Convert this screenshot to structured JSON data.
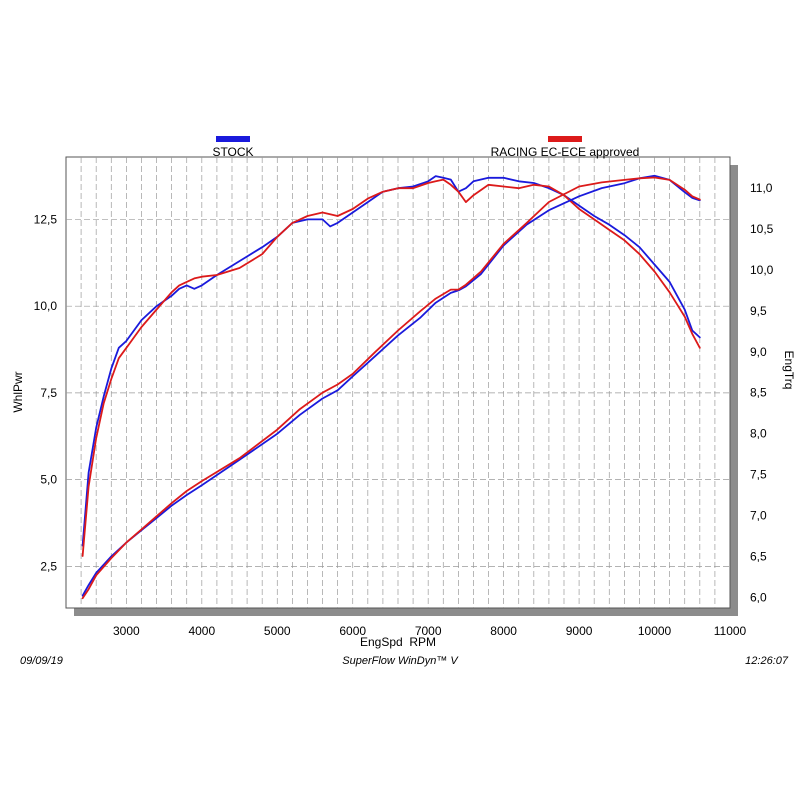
{
  "footer": {
    "date": "09/09/19",
    "software": "SuperFlow WinDyn™ V",
    "time": "12:26:07"
  },
  "chart_data": {
    "type": "line",
    "xlabel": "EngSpd  RPM",
    "ylabel_left": "WhlPwr",
    "ylabel_right": "EngTrq",
    "xlim": [
      2200,
      11000
    ],
    "ylim_left": [
      1.3,
      14.3
    ],
    "ylim_right": [
      5.87,
      11.38
    ],
    "x_ticks": [
      3000,
      4000,
      5000,
      6000,
      7000,
      8000,
      9000,
      10000,
      11000
    ],
    "y_left_ticks": [
      2.5,
      5.0,
      7.5,
      10.0,
      12.5
    ],
    "y_left_tick_labels": [
      "2,5",
      "5,0",
      "7,5",
      "10,0",
      "12,5"
    ],
    "y_right_ticks": [
      6.0,
      6.5,
      7.0,
      7.5,
      8.0,
      8.5,
      9.0,
      9.5,
      10.0,
      10.5,
      11.0
    ],
    "y_right_tick_labels": [
      "6,0",
      "6,5",
      "7,0",
      "7,5",
      "8,0",
      "8,5",
      "9,0",
      "9,5",
      "10,0",
      "10,5",
      "11,0"
    ],
    "grid": true,
    "legend_placement": "top",
    "series": [
      {
        "name": "STOCK",
        "color": "#1a1adc",
        "quantity": "power",
        "axis": "left",
        "x": [
          2420,
          2500,
          2600,
          2700,
          2800,
          2900,
          3000,
          3200,
          3400,
          3600,
          3700,
          3800,
          3900,
          4000,
          4200,
          4500,
          4800,
          5000,
          5200,
          5400,
          5600,
          5700,
          5800,
          6000,
          6200,
          6400,
          6600,
          6800,
          7000,
          7100,
          7200,
          7300,
          7400,
          7500,
          7600,
          7800,
          8000,
          8200,
          8400,
          8600,
          8800,
          9000,
          9200,
          9400,
          9600,
          9800,
          10000,
          10200,
          10400,
          10500,
          10600
        ],
        "y": [
          3.1,
          5.2,
          6.5,
          7.4,
          8.2,
          8.8,
          9.0,
          9.6,
          10.0,
          10.3,
          10.5,
          10.6,
          10.5,
          10.6,
          10.9,
          11.3,
          11.7,
          12.0,
          12.4,
          12.5,
          12.5,
          12.3,
          12.4,
          12.7,
          13.0,
          13.3,
          13.4,
          13.45,
          13.6,
          13.75,
          13.7,
          13.65,
          13.3,
          13.4,
          13.6,
          13.7,
          13.7,
          13.6,
          13.55,
          13.4,
          13.2,
          12.9,
          12.6,
          12.35,
          12.05,
          11.7,
          11.2,
          10.7,
          9.9,
          9.3,
          9.1
        ]
      },
      {
        "name": "RACING EC-ECE approved",
        "color": "#dc1a1a",
        "quantity": "power",
        "axis": "left",
        "x": [
          2420,
          2500,
          2600,
          2700,
          2800,
          2900,
          3000,
          3200,
          3400,
          3600,
          3700,
          3800,
          3900,
          4000,
          4200,
          4500,
          4800,
          5000,
          5200,
          5400,
          5600,
          5700,
          5800,
          6000,
          6200,
          6400,
          6600,
          6800,
          7000,
          7100,
          7200,
          7300,
          7400,
          7500,
          7600,
          7800,
          8000,
          8200,
          8400,
          8600,
          8800,
          9000,
          9200,
          9400,
          9600,
          9800,
          10000,
          10200,
          10400,
          10500,
          10600
        ],
        "y": [
          2.8,
          4.8,
          6.2,
          7.2,
          7.9,
          8.5,
          8.8,
          9.4,
          9.9,
          10.4,
          10.6,
          10.7,
          10.8,
          10.85,
          10.9,
          11.1,
          11.5,
          12.0,
          12.4,
          12.6,
          12.7,
          12.65,
          12.6,
          12.8,
          13.1,
          13.3,
          13.4,
          13.4,
          13.55,
          13.6,
          13.65,
          13.5,
          13.3,
          13.0,
          13.2,
          13.5,
          13.45,
          13.4,
          13.5,
          13.45,
          13.2,
          12.8,
          12.5,
          12.2,
          11.9,
          11.5,
          11.0,
          10.4,
          9.7,
          9.2,
          8.8
        ]
      },
      {
        "name": "STOCK",
        "color": "#1a1adc",
        "quantity": "torque",
        "axis": "right",
        "x": [
          2420,
          2500,
          2600,
          2800,
          3000,
          3200,
          3400,
          3600,
          3800,
          4000,
          4500,
          5000,
          5300,
          5600,
          5800,
          6000,
          6300,
          6600,
          6900,
          7100,
          7300,
          7400,
          7500,
          7700,
          8000,
          8300,
          8600,
          9000,
          9300,
          9600,
          9800,
          10000,
          10200,
          10400,
          10500,
          10600
        ],
        "y": [
          6.02,
          6.15,
          6.3,
          6.5,
          6.67,
          6.82,
          6.97,
          7.12,
          7.25,
          7.37,
          7.68,
          8.0,
          8.23,
          8.43,
          8.53,
          8.7,
          8.95,
          9.2,
          9.42,
          9.6,
          9.72,
          9.75,
          9.8,
          9.95,
          10.3,
          10.55,
          10.73,
          10.9,
          11.0,
          11.06,
          11.12,
          11.15,
          11.1,
          10.95,
          10.88,
          10.85
        ]
      },
      {
        "name": "RACING EC-ECE approved",
        "color": "#dc1a1a",
        "quantity": "torque",
        "axis": "right",
        "x": [
          2420,
          2500,
          2600,
          2800,
          3000,
          3200,
          3400,
          3600,
          3800,
          4000,
          4500,
          5000,
          5300,
          5600,
          5800,
          6000,
          6300,
          6600,
          6900,
          7100,
          7300,
          7400,
          7500,
          7700,
          8000,
          8300,
          8600,
          9000,
          9300,
          9600,
          9800,
          10000,
          10200,
          10400,
          10500,
          10600
        ],
        "y": [
          5.99,
          6.1,
          6.27,
          6.48,
          6.67,
          6.83,
          6.99,
          7.15,
          7.3,
          7.42,
          7.7,
          8.05,
          8.3,
          8.5,
          8.6,
          8.73,
          9.0,
          9.26,
          9.5,
          9.65,
          9.76,
          9.76,
          9.82,
          9.98,
          10.32,
          10.57,
          10.83,
          11.02,
          11.07,
          11.1,
          11.12,
          11.13,
          11.1,
          10.98,
          10.9,
          10.86
        ]
      }
    ]
  }
}
